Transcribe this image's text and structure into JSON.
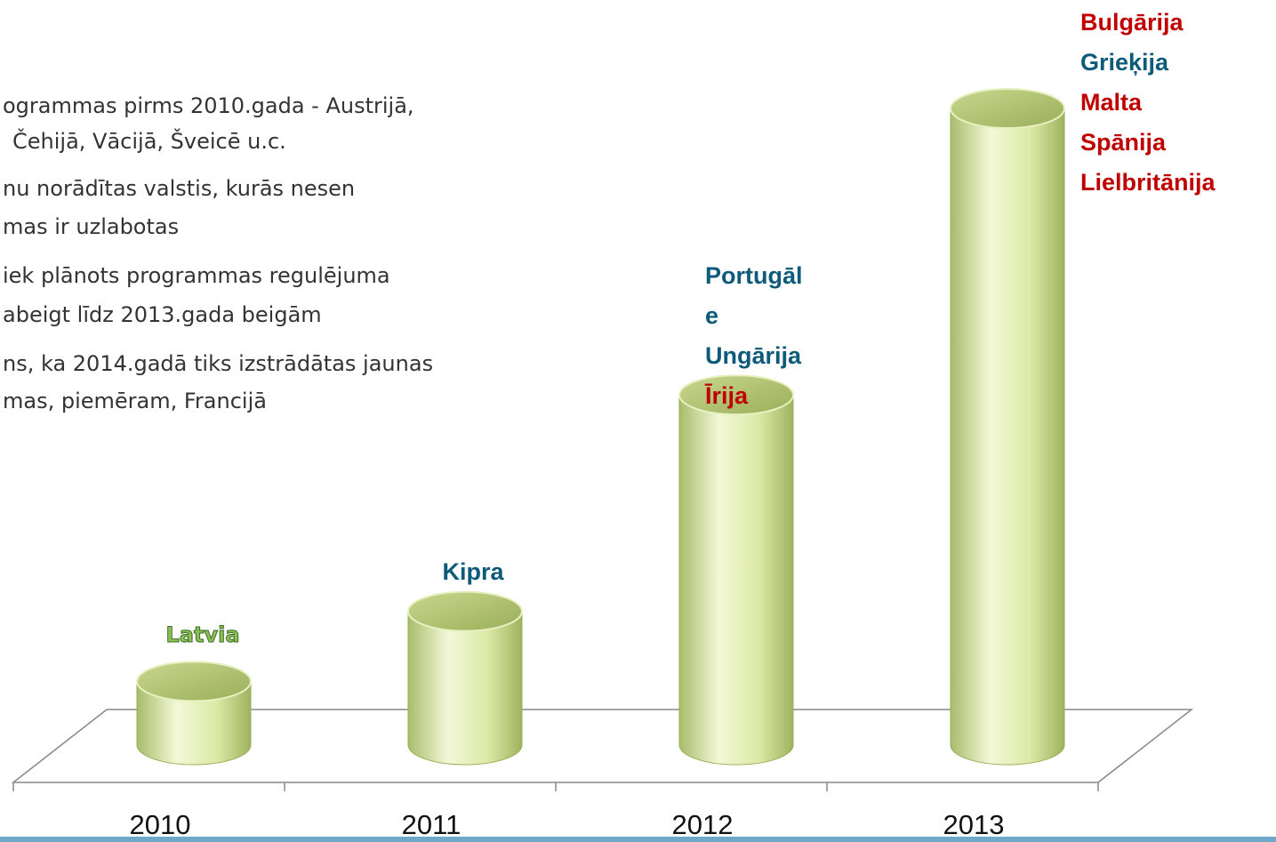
{
  "chart_data": {
    "type": "bar",
    "text_lines": [
      "ogrammas pirms 2010.gada - Austrijā,",
      "Čehijā, Vācijā, Šveicē u.c.",
      "nu norādītas valstis, kurās nesen",
      "mas ir uzlabotas",
      "iek plānots programmas regulējuma",
      "abeigt līdz 2013.gada beigām",
      "ns, ka 2014.gadā tiks izstrādātas jaunas",
      "mas, piemēram, Francijā"
    ],
    "categories": [
      "2010",
      "2011",
      "2012",
      "2013"
    ],
    "values": [
      1,
      2.1,
      5.5,
      10
    ],
    "ylim": [
      0,
      10
    ],
    "color": "#dce9a6",
    "bar_labels": [
      [
        {
          "text": "Latvia",
          "color": "#8cc152"
        }
      ],
      [
        {
          "text": "Kipra",
          "color": "#0e5a7a"
        }
      ],
      [
        {
          "text": "Portugāl",
          "color": "#0e5a7a"
        },
        {
          "text": "e",
          "color": "#0e5a7a"
        },
        {
          "text": "Ungārija",
          "color": "#0e5a7a"
        },
        {
          "text": "Īrija",
          "color": "#c00000"
        }
      ],
      [
        {
          "text": "Bulgārija",
          "color": "#c00000"
        },
        {
          "text": "Grieķija",
          "color": "#0e5a7a"
        },
        {
          "text": "Malta",
          "color": "#c00000"
        },
        {
          "text": "Spānija",
          "color": "#c00000"
        },
        {
          "text": "Lielbritānija",
          "color": "#c00000"
        }
      ]
    ]
  }
}
